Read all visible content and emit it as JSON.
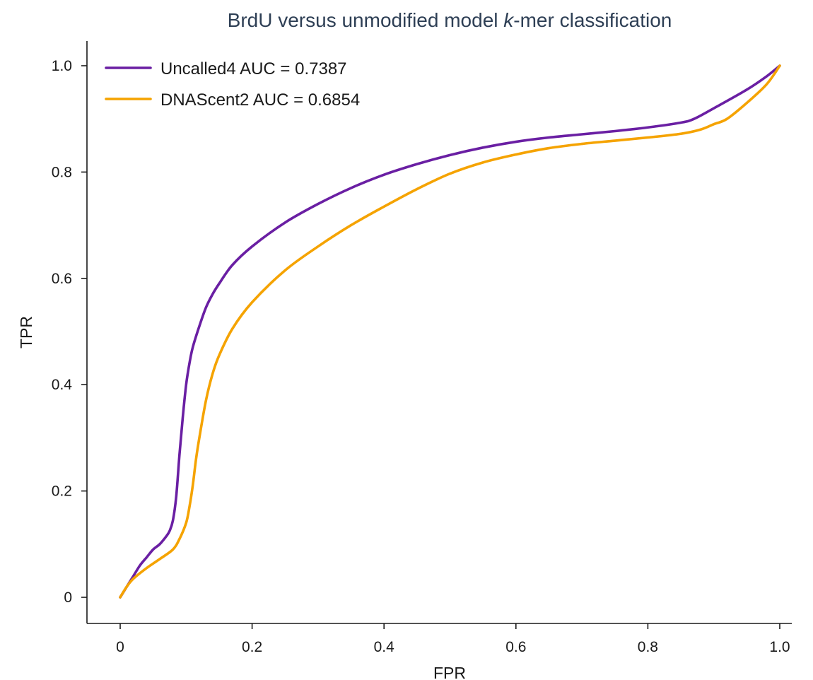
{
  "chart_data": {
    "type": "line",
    "title": {
      "prefix": "BrdU versus unmodified model ",
      "italic": "k",
      "suffix": "-mer classification"
    },
    "xlabel": "FPR",
    "ylabel": "TPR",
    "xlim": [
      0,
      1.0
    ],
    "ylim": [
      0,
      1.0
    ],
    "xticks": [
      0,
      0.2,
      0.4,
      0.6,
      0.8,
      1.0
    ],
    "xtick_labels": [
      "0",
      "0.2",
      "0.4",
      "0.6",
      "0.8",
      "1.0"
    ],
    "yticks": [
      0,
      0.2,
      0.4,
      0.6,
      0.8,
      1.0
    ],
    "ytick_labels": [
      "0",
      "0.2",
      "0.4",
      "0.6",
      "0.8",
      "1.0"
    ],
    "grid": false,
    "legend_position": "top-left",
    "series": [
      {
        "name": "Uncalled4 AUC = 0.7387",
        "color": "#6a1fa3",
        "x": [
          0,
          0.01,
          0.02,
          0.03,
          0.04,
          0.05,
          0.06,
          0.07,
          0.075,
          0.08,
          0.085,
          0.09,
          0.095,
          0.1,
          0.105,
          0.11,
          0.12,
          0.13,
          0.14,
          0.15,
          0.17,
          0.2,
          0.25,
          0.3,
          0.35,
          0.4,
          0.45,
          0.5,
          0.55,
          0.6,
          0.65,
          0.7,
          0.75,
          0.8,
          0.85,
          0.87,
          0.9,
          0.95,
          0.98,
          1.0
        ],
        "y": [
          0,
          0.02,
          0.04,
          0.06,
          0.075,
          0.09,
          0.1,
          0.115,
          0.125,
          0.145,
          0.19,
          0.27,
          0.34,
          0.4,
          0.44,
          0.47,
          0.51,
          0.545,
          0.57,
          0.59,
          0.625,
          0.66,
          0.705,
          0.74,
          0.77,
          0.795,
          0.815,
          0.832,
          0.846,
          0.857,
          0.865,
          0.871,
          0.877,
          0.884,
          0.893,
          0.9,
          0.92,
          0.955,
          0.98,
          1.0
        ]
      },
      {
        "name": "DNAScent2 AUC = 0.6854",
        "color": "#f5a300",
        "x": [
          0,
          0.01,
          0.02,
          0.04,
          0.06,
          0.08,
          0.09,
          0.1,
          0.105,
          0.11,
          0.115,
          0.12,
          0.13,
          0.14,
          0.15,
          0.17,
          0.2,
          0.25,
          0.3,
          0.35,
          0.4,
          0.45,
          0.5,
          0.55,
          0.6,
          0.65,
          0.7,
          0.75,
          0.8,
          0.85,
          0.88,
          0.9,
          0.92,
          0.95,
          0.98,
          1.0
        ],
        "y": [
          0,
          0.02,
          0.035,
          0.055,
          0.072,
          0.09,
          0.11,
          0.14,
          0.17,
          0.21,
          0.26,
          0.3,
          0.37,
          0.42,
          0.455,
          0.505,
          0.555,
          0.615,
          0.66,
          0.7,
          0.735,
          0.768,
          0.797,
          0.818,
          0.833,
          0.845,
          0.853,
          0.859,
          0.865,
          0.872,
          0.88,
          0.89,
          0.9,
          0.93,
          0.965,
          1.0
        ]
      }
    ]
  }
}
